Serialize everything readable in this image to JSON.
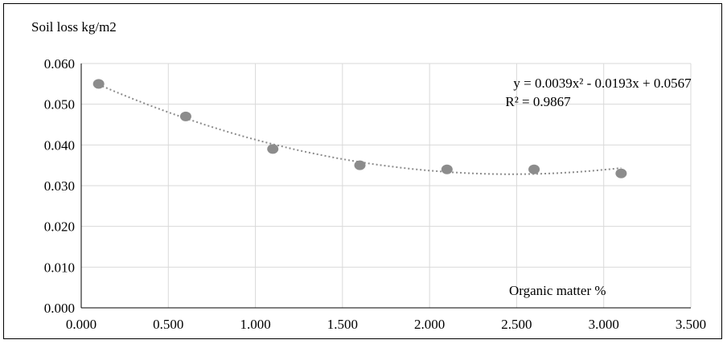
{
  "chart_data": {
    "type": "scatter",
    "title": "",
    "ylabel": "Soil loss kg/m2",
    "xlabel": "Organic matter %",
    "xlim": [
      0,
      3.5
    ],
    "ylim": [
      0,
      0.06
    ],
    "x_ticks": [
      "0.000",
      "0.500",
      "1.000",
      "1.500",
      "2.000",
      "2.500",
      "3.000",
      "3.500"
    ],
    "y_ticks": [
      "0.000",
      "0.010",
      "0.020",
      "0.030",
      "0.040",
      "0.050",
      "0.060"
    ],
    "grid": "vertical and horizontal",
    "series": [
      {
        "x": [
          0.1,
          0.6,
          1.1,
          1.6,
          2.1,
          2.6,
          3.1
        ],
        "y": [
          0.055,
          0.047,
          0.039,
          0.035,
          0.034,
          0.034,
          0.033
        ]
      }
    ],
    "trendline": {
      "type": "polynomial-2",
      "coefficients": [
        0.0039,
        -0.0193,
        0.0567
      ],
      "equation": "y = 0.0039x² - 0.0193x + 0.0567",
      "r_squared": "R² = 0.9867"
    },
    "colors": {
      "marker": "#8c8c8c",
      "trendline": "#8c8c8c",
      "grid": "#d9d9d9",
      "axis": "#000000"
    }
  }
}
